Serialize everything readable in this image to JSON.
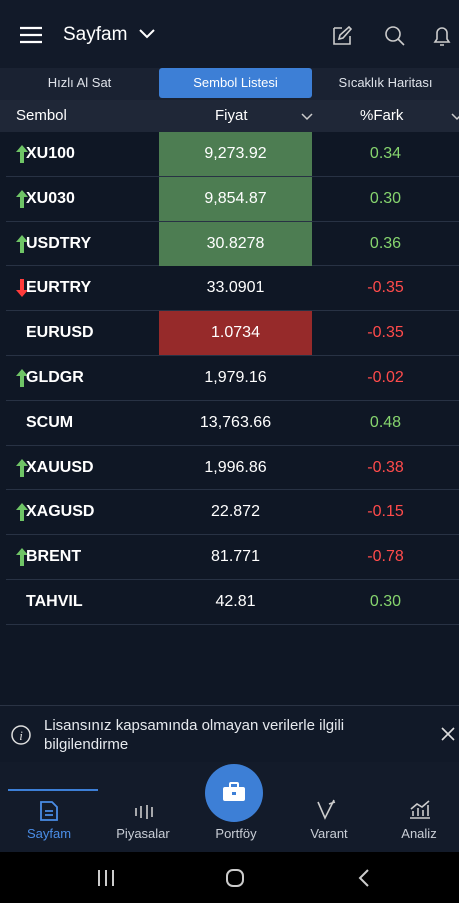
{
  "header": {
    "title": "Sayfam"
  },
  "tabs": [
    "Hızlı Al Sat",
    "Sembol Listesi",
    "Sıcaklık Haritası"
  ],
  "selected_tab_color": "#3d7fd6",
  "table": {
    "columns": [
      "Sembol",
      "Fiyat",
      "%Fark"
    ],
    "rows": [
      {
        "symbol": "XU100",
        "trend": "up",
        "price": "9,273.92",
        "price_bg": "#4d7d52",
        "change": "0.34",
        "change_color": "#86d46e"
      },
      {
        "symbol": "XU030",
        "trend": "up",
        "price": "9,854.87",
        "price_bg": "#4d7d52",
        "change": "0.30",
        "change_color": "#86d46e"
      },
      {
        "symbol": "USDTRY",
        "trend": "up",
        "price": "30.8278",
        "price_bg": "#4d7d52",
        "change": "0.36",
        "change_color": "#86d46e"
      },
      {
        "symbol": "EURTRY",
        "trend": "down",
        "price": "33.0901",
        "price_bg": null,
        "change": "-0.35",
        "change_color": "#ff4b4b"
      },
      {
        "symbol": "EURUSD",
        "trend": null,
        "price": "1.0734",
        "price_bg": "#962a2a",
        "change": "-0.35",
        "change_color": "#ff4b4b"
      },
      {
        "symbol": "GLDGR",
        "trend": "up",
        "price": "1,979.16",
        "price_bg": null,
        "change": "-0.02",
        "change_color": "#ff4b4b"
      },
      {
        "symbol": "SCUM",
        "trend": null,
        "price": "13,763.66",
        "price_bg": null,
        "change": "0.48",
        "change_color": "#86d46e"
      },
      {
        "symbol": "XAUUSD",
        "trend": "up",
        "price": "1,996.86",
        "price_bg": null,
        "change": "-0.38",
        "change_color": "#ff4b4b"
      },
      {
        "symbol": "XAGUSD",
        "trend": "up",
        "price": "22.872",
        "price_bg": null,
        "change": "-0.15",
        "change_color": "#ff4b4b"
      },
      {
        "symbol": "BRENT",
        "trend": "up",
        "price": "81.771",
        "price_bg": null,
        "change": "-0.78",
        "change_color": "#ff4b4b"
      },
      {
        "symbol": "TAHVIL",
        "trend": null,
        "price": "42.81",
        "price_bg": null,
        "change": "0.30",
        "change_color": "#86d46e"
      }
    ]
  },
  "notice": "Lisansınız kapsamında olmayan verilerle ilgili bilgilendirme",
  "nav": [
    "Sayfam",
    "Piyasalar",
    "Portföy",
    "Varant",
    "Analiz"
  ],
  "nav_selected": 0
}
